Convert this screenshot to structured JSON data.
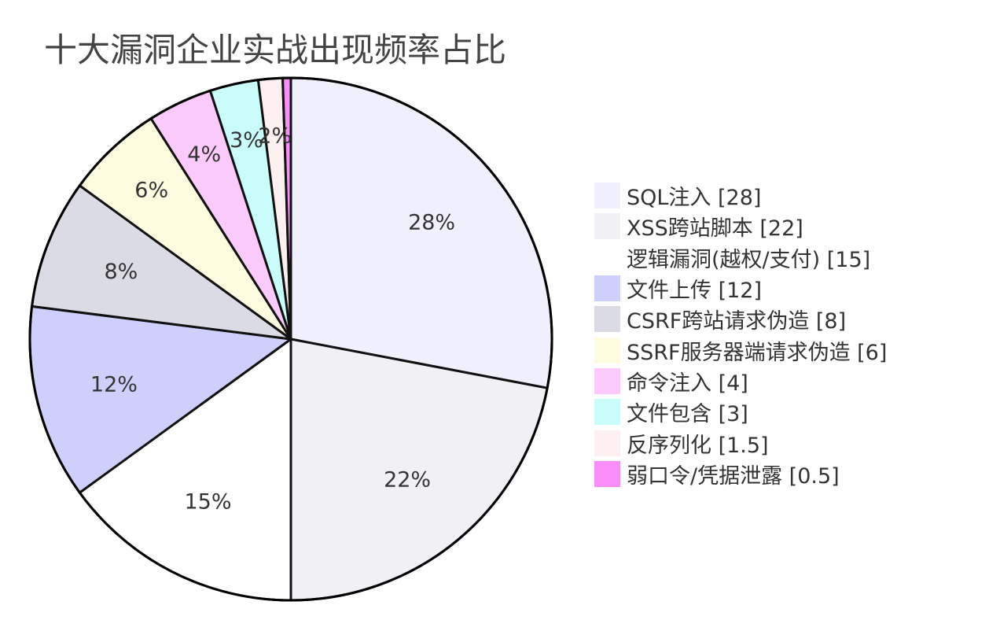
{
  "title": "十大漏洞企业实战出现频率占比",
  "chart_data": {
    "type": "pie",
    "title": "十大漏洞企业实战出现频率占比",
    "legend_position": "right",
    "direction": "clockwise",
    "start": "top",
    "slices": [
      {
        "label": "SQL注入",
        "value": 28,
        "pct_label": "28%",
        "legend_label": "SQL注入 [28]",
        "color": "#f0f0fd"
      },
      {
        "label": "XSS跨站脚本",
        "value": 22,
        "pct_label": "22%",
        "legend_label": "XSS跨站脚本 [22]",
        "color": "#f0f0f5"
      },
      {
        "label": "逻辑漏洞(越权/支付)",
        "value": 15,
        "pct_label": "15%",
        "legend_label": "逻辑漏洞(越权/支付) [15]",
        "color": "#ffffff"
      },
      {
        "label": "文件上传",
        "value": 12,
        "pct_label": "12%",
        "legend_label": "文件上传 [12]",
        "color": "#cfcffc"
      },
      {
        "label": "CSRF跨站请求伪造",
        "value": 8,
        "pct_label": "8%",
        "legend_label": "CSRF跨站请求伪造 [8]",
        "color": "#dbdbe6"
      },
      {
        "label": "SSRF服务器端请求伪造",
        "value": 6,
        "pct_label": "6%",
        "legend_label": "SSRF服务器端请求伪造 [6]",
        "color": "#fdfce0"
      },
      {
        "label": "命令注入",
        "value": 4,
        "pct_label": "4%",
        "legend_label": "命令注入 [4]",
        "color": "#facafa"
      },
      {
        "label": "文件包含",
        "value": 3,
        "pct_label": "3%",
        "legend_label": "文件包含 [3]",
        "color": "#cafcfa"
      },
      {
        "label": "反序列化",
        "value": 1.5,
        "pct_label": "2%",
        "legend_label": "反序列化 [1.5]",
        "color": "#fdf0f0"
      },
      {
        "label": "弱口令/凭据泄露",
        "value": 0.5,
        "pct_label": "",
        "legend_label": "弱口令/凭据泄露 [0.5]",
        "color": "#f98ef9"
      }
    ]
  }
}
